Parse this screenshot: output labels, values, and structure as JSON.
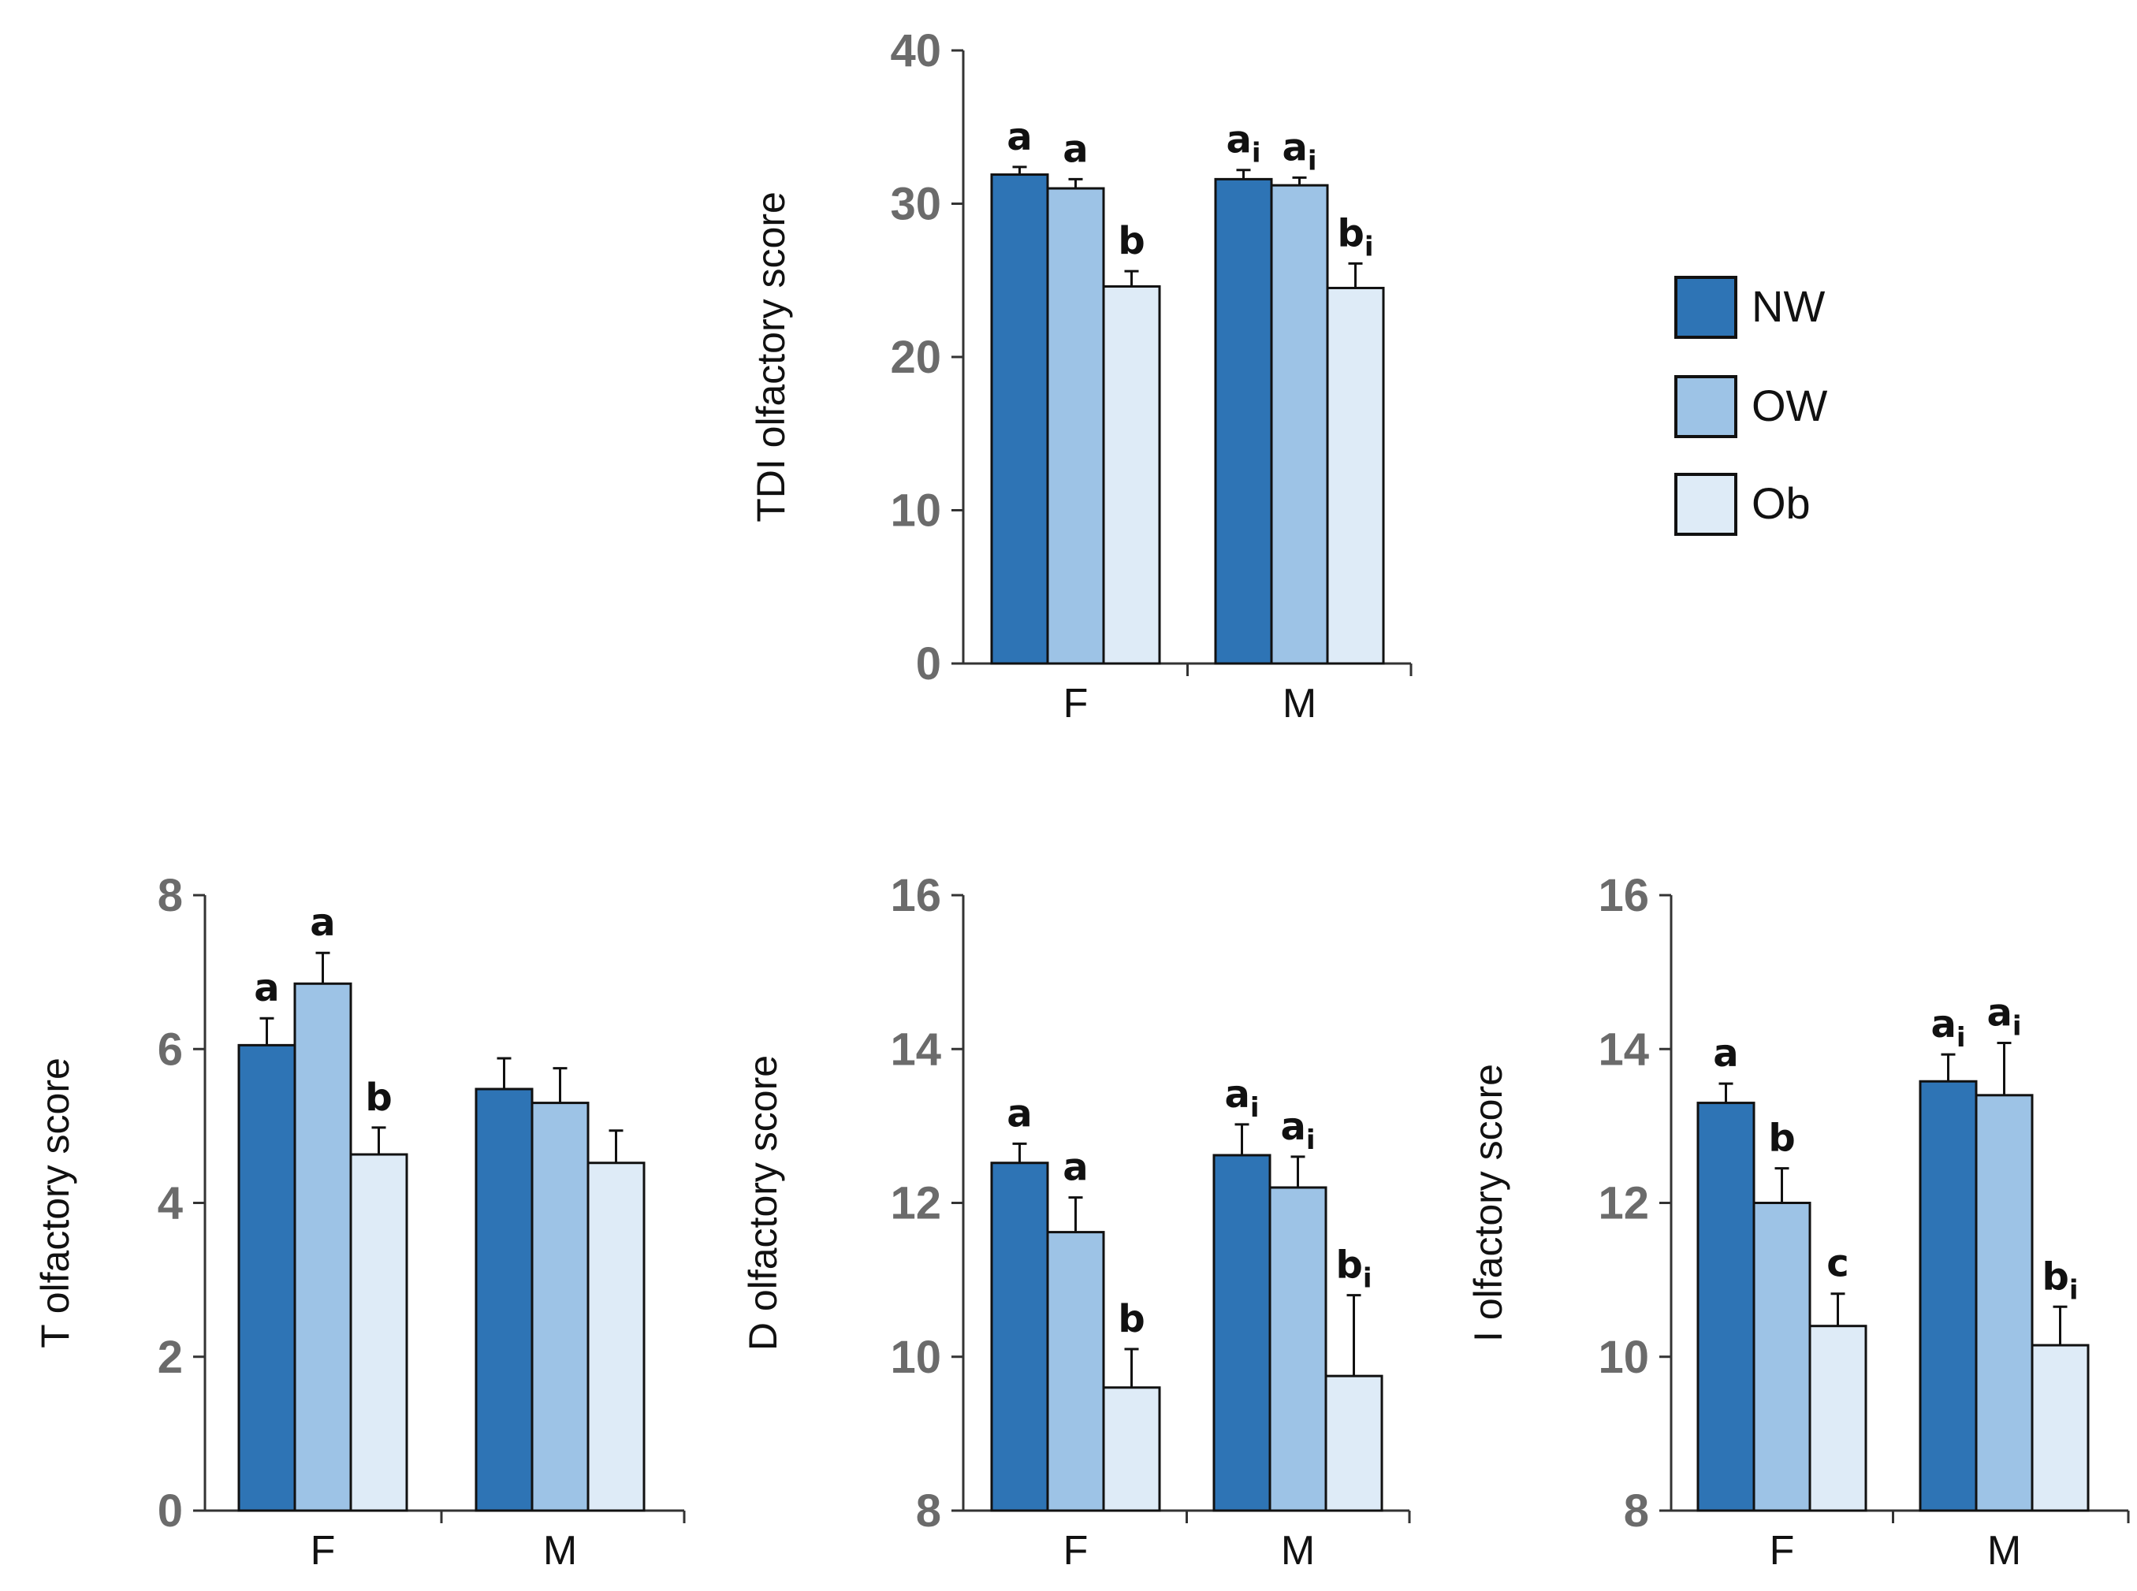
{
  "legend": [
    {
      "label": "NW",
      "color": "#2e74b5"
    },
    {
      "label": "OW",
      "color": "#9dc3e6"
    },
    {
      "label": "Ob",
      "color": "#deebf7"
    }
  ],
  "chart_data": [
    {
      "id": "tdi",
      "type": "bar",
      "ylabel": "TDI olfactory score",
      "ylim": [
        0,
        40
      ],
      "yticks": [
        0,
        10,
        20,
        30,
        40
      ],
      "categories": [
        "F",
        "M"
      ],
      "series": [
        {
          "name": "NW",
          "values": [
            31.9,
            31.6
          ],
          "errors": [
            0.5,
            0.6
          ],
          "sig": [
            {
              "base": "a",
              "sub": ""
            },
            {
              "base": "a",
              "sub": "i"
            }
          ]
        },
        {
          "name": "OW",
          "values": [
            31.0,
            31.2
          ],
          "errors": [
            0.6,
            0.5
          ],
          "sig": [
            {
              "base": "a",
              "sub": ""
            },
            {
              "base": "a",
              "sub": "i"
            }
          ]
        },
        {
          "name": "Ob",
          "values": [
            24.6,
            24.5
          ],
          "errors": [
            1.0,
            1.6
          ],
          "sig": [
            {
              "base": "b",
              "sub": ""
            },
            {
              "base": "b",
              "sub": "i"
            }
          ]
        }
      ]
    },
    {
      "id": "t",
      "type": "bar",
      "ylabel": "T olfactory score",
      "ylim": [
        0,
        8
      ],
      "yticks": [
        0,
        2,
        4,
        6,
        8
      ],
      "categories": [
        "F",
        "M"
      ],
      "series": [
        {
          "name": "NW",
          "values": [
            6.05,
            5.48
          ],
          "errors": [
            0.35,
            0.4
          ],
          "sig": [
            {
              "base": "a",
              "sub": ""
            },
            null
          ]
        },
        {
          "name": "OW",
          "values": [
            6.85,
            5.3
          ],
          "errors": [
            0.4,
            0.45
          ],
          "sig": [
            {
              "base": "a",
              "sub": ""
            },
            null
          ]
        },
        {
          "name": "Ob",
          "values": [
            4.63,
            4.52
          ],
          "errors": [
            0.35,
            0.42
          ],
          "sig": [
            {
              "base": "b",
              "sub": ""
            },
            null
          ]
        }
      ]
    },
    {
      "id": "d",
      "type": "bar",
      "ylabel": "D olfactory score",
      "ylim": [
        8,
        16
      ],
      "yticks": [
        8,
        10,
        12,
        14,
        16
      ],
      "categories": [
        "F",
        "M"
      ],
      "series": [
        {
          "name": "NW",
          "values": [
            12.52,
            12.62
          ],
          "errors": [
            0.25,
            0.4
          ],
          "sig": [
            {
              "base": "a",
              "sub": ""
            },
            {
              "base": "a",
              "sub": "i"
            }
          ]
        },
        {
          "name": "OW",
          "values": [
            11.62,
            12.2
          ],
          "errors": [
            0.45,
            0.4
          ],
          "sig": [
            {
              "base": "a",
              "sub": ""
            },
            {
              "base": "a",
              "sub": "i"
            }
          ]
        },
        {
          "name": "Ob",
          "values": [
            9.6,
            9.75
          ],
          "errors": [
            0.5,
            1.05
          ],
          "sig": [
            {
              "base": "b",
              "sub": ""
            },
            {
              "base": "b",
              "sub": "i"
            }
          ]
        }
      ]
    },
    {
      "id": "i",
      "type": "bar",
      "ylabel": "I olfactory score",
      "ylim": [
        8,
        16
      ],
      "yticks": [
        8,
        10,
        12,
        14,
        16
      ],
      "categories": [
        "F",
        "M"
      ],
      "series": [
        {
          "name": "NW",
          "values": [
            13.3,
            13.58
          ],
          "errors": [
            0.25,
            0.35
          ],
          "sig": [
            {
              "base": "a",
              "sub": ""
            },
            {
              "base": "a",
              "sub": "i"
            }
          ]
        },
        {
          "name": "OW",
          "values": [
            12.0,
            13.4
          ],
          "errors": [
            0.45,
            0.68
          ],
          "sig": [
            {
              "base": "b",
              "sub": ""
            },
            {
              "base": "a",
              "sub": "i"
            }
          ]
        },
        {
          "name": "Ob",
          "values": [
            10.4,
            10.15
          ],
          "errors": [
            0.42,
            0.5
          ],
          "sig": [
            {
              "base": "c",
              "sub": ""
            },
            {
              "base": "b",
              "sub": "i"
            }
          ]
        }
      ]
    }
  ]
}
